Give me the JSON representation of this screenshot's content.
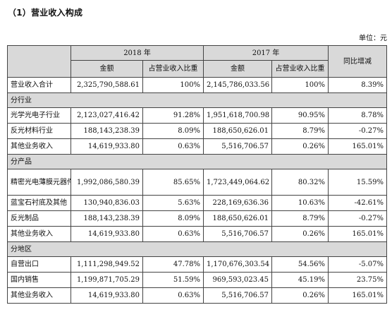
{
  "heading": "（1）营业收入构成",
  "unit": "单位：元",
  "headers": {
    "year_2018": "2018 年",
    "year_2017": "2017 年",
    "change": "同比增减",
    "amount": "金额",
    "ratio": "占营业收入比重"
  },
  "total": {
    "label": "营业收入合计",
    "a2018": "2,325,790,588.61",
    "r2018": "100%",
    "a2017": "2,145,786,033.56",
    "r2017": "100%",
    "change": "8.39%"
  },
  "sections": [
    {
      "title": "分行业",
      "rows": [
        {
          "label": "光学光电子行业",
          "a2018": "2,123,027,416.42",
          "r2018": "91.28%",
          "a2017": "1,951,618,700.98",
          "r2017": "90.95%",
          "change": "8.78%"
        },
        {
          "label": "反光材料行业",
          "a2018": "188,143,238.39",
          "r2018": "8.09%",
          "a2017": "188,650,626.01",
          "r2017": "8.79%",
          "change": "-0.27%"
        },
        {
          "label": "其他业务收入",
          "a2018": "14,619,933.80",
          "r2018": "0.63%",
          "a2017": "5,516,706.57",
          "r2017": "0.26%",
          "change": "165.01%"
        }
      ]
    },
    {
      "title": "分产品",
      "rows": [
        {
          "label": "精密光电薄膜元器件",
          "a2018": "1,992,086,580.39",
          "r2018": "85.65%",
          "a2017": "1,723,449,064.62",
          "r2017": "80.32%",
          "change": "15.59%"
        },
        {
          "label": "蓝宝石衬底及其他",
          "a2018": "130,940,836.03",
          "r2018": "5.63%",
          "a2017": "228,169,636.36",
          "r2017": "10.63%",
          "change": "-42.61%"
        },
        {
          "label": "反光制品",
          "a2018": "188,143,238.39",
          "r2018": "8.09%",
          "a2017": "188,650,626.01",
          "r2017": "8.79%",
          "change": "-0.27%"
        },
        {
          "label": "其他业务收入",
          "a2018": "14,619,933.80",
          "r2018": "0.63%",
          "a2017": "5,516,706.57",
          "r2017": "0.26%",
          "change": "165.01%"
        }
      ]
    },
    {
      "title": "分地区",
      "rows": [
        {
          "label": "自营出口",
          "a2018": "1,111,298,949.52",
          "r2018": "47.78%",
          "a2017": "1,170,676,303.54",
          "r2017": "54.56%",
          "change": "-5.07%"
        },
        {
          "label": "国内销售",
          "a2018": "1,199,871,705.29",
          "r2018": "51.59%",
          "a2017": "969,593,023.45",
          "r2017": "45.19%",
          "change": "23.75%"
        },
        {
          "label": "其他业务收入",
          "a2018": "14,619,933.80",
          "r2018": "0.63%",
          "a2017": "5,516,706.57",
          "r2017": "0.26%",
          "change": "165.01%"
        }
      ]
    }
  ]
}
